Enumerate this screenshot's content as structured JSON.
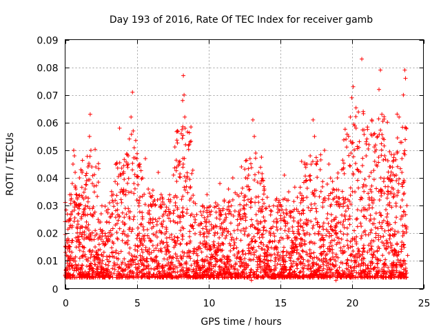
{
  "chart_data": {
    "type": "scatter",
    "title": "Day 193 of 2016, Rate Of TEC Index for receiver gamb",
    "xlabel": "GPS time / hours",
    "ylabel": "ROTI / TECUs",
    "xlim": [
      0,
      25
    ],
    "ylim": [
      0,
      0.09
    ],
    "xticks": [
      0,
      5,
      10,
      15,
      20,
      25
    ],
    "xtick_labels": [
      "0",
      "5",
      "10",
      "15",
      "20",
      "25"
    ],
    "yticks": [
      0,
      0.01,
      0.02,
      0.03,
      0.04,
      0.05,
      0.06,
      0.07,
      0.08,
      0.09
    ],
    "ytick_labels": [
      "0",
      "0.01",
      "0.02",
      "0.03",
      "0.04",
      "0.05",
      "0.06",
      "0.07",
      "0.08",
      "0.09"
    ],
    "grid": true,
    "marker": "plus",
    "color": "#ff0000",
    "series": [
      {
        "name": "ROTI",
        "points": [
          [
            0.1,
            0.012
          ],
          [
            0.2,
            0.018
          ],
          [
            0.3,
            0.025
          ],
          [
            0.4,
            0.032
          ],
          [
            0.5,
            0.038
          ],
          [
            0.55,
            0.045
          ],
          [
            0.6,
            0.05
          ],
          [
            0.65,
            0.048
          ],
          [
            0.7,
            0.042
          ],
          [
            0.75,
            0.036
          ],
          [
            0.8,
            0.03
          ],
          [
            0.9,
            0.027
          ],
          [
            1.0,
            0.04
          ],
          [
            1.1,
            0.043
          ],
          [
            1.2,
            0.033
          ],
          [
            1.3,
            0.028
          ],
          [
            1.4,
            0.036
          ],
          [
            1.5,
            0.039
          ],
          [
            1.6,
            0.044
          ],
          [
            1.7,
            0.055
          ],
          [
            1.75,
            0.063
          ],
          [
            1.8,
            0.05
          ],
          [
            1.9,
            0.038
          ],
          [
            2.0,
            0.027
          ],
          [
            2.1,
            0.021
          ],
          [
            2.3,
            0.018
          ],
          [
            2.6,
            0.02
          ],
          [
            2.9,
            0.024
          ],
          [
            3.1,
            0.031
          ],
          [
            3.3,
            0.027
          ],
          [
            3.5,
            0.023
          ],
          [
            3.8,
            0.058
          ],
          [
            3.9,
            0.041
          ],
          [
            4.0,
            0.035
          ],
          [
            4.2,
            0.029
          ],
          [
            4.4,
            0.045
          ],
          [
            4.6,
            0.062
          ],
          [
            4.7,
            0.071
          ],
          [
            4.75,
            0.057
          ],
          [
            4.8,
            0.038
          ],
          [
            5.0,
            0.032
          ],
          [
            5.2,
            0.044
          ],
          [
            5.4,
            0.04
          ],
          [
            5.6,
            0.047
          ],
          [
            5.8,
            0.036
          ],
          [
            6.0,
            0.03
          ],
          [
            6.3,
            0.025
          ],
          [
            6.5,
            0.042
          ],
          [
            6.7,
            0.034
          ],
          [
            7.0,
            0.028
          ],
          [
            7.3,
            0.027
          ],
          [
            7.6,
            0.033
          ],
          [
            7.8,
            0.044
          ],
          [
            8.0,
            0.046
          ],
          [
            8.1,
            0.056
          ],
          [
            8.2,
            0.068
          ],
          [
            8.25,
            0.077
          ],
          [
            8.3,
            0.07
          ],
          [
            8.35,
            0.062
          ],
          [
            8.4,
            0.052
          ],
          [
            8.5,
            0.04
          ],
          [
            8.7,
            0.032
          ],
          [
            9.0,
            0.026
          ],
          [
            9.3,
            0.023
          ],
          [
            9.6,
            0.03
          ],
          [
            9.9,
            0.034
          ],
          [
            10.2,
            0.028
          ],
          [
            10.5,
            0.031
          ],
          [
            10.8,
            0.038
          ],
          [
            11.1,
            0.032
          ],
          [
            11.4,
            0.036
          ],
          [
            11.7,
            0.04
          ],
          [
            12.0,
            0.034
          ],
          [
            12.3,
            0.044
          ],
          [
            12.6,
            0.04
          ],
          [
            12.9,
            0.047
          ],
          [
            13.1,
            0.061
          ],
          [
            13.2,
            0.055
          ],
          [
            13.3,
            0.049
          ],
          [
            13.5,
            0.042
          ],
          [
            13.7,
            0.039
          ],
          [
            13.9,
            0.036
          ],
          [
            14.1,
            0.033
          ],
          [
            14.4,
            0.028
          ],
          [
            14.7,
            0.032
          ],
          [
            15.0,
            0.03
          ],
          [
            15.3,
            0.041
          ],
          [
            15.6,
            0.035
          ],
          [
            15.9,
            0.028
          ],
          [
            16.2,
            0.033
          ],
          [
            16.5,
            0.046
          ],
          [
            16.8,
            0.039
          ],
          [
            17.1,
            0.048
          ],
          [
            17.3,
            0.061
          ],
          [
            17.4,
            0.055
          ],
          [
            17.6,
            0.046
          ],
          [
            17.8,
            0.043
          ],
          [
            18.1,
            0.05
          ],
          [
            18.4,
            0.045
          ],
          [
            18.7,
            0.036
          ],
          [
            19.0,
            0.04
          ],
          [
            19.3,
            0.043
          ],
          [
            19.6,
            0.054
          ],
          [
            19.9,
            0.062
          ],
          [
            20.0,
            0.069
          ],
          [
            20.1,
            0.073
          ],
          [
            20.3,
            0.058
          ],
          [
            20.5,
            0.051
          ],
          [
            20.7,
            0.083
          ],
          [
            20.8,
            0.064
          ],
          [
            21.0,
            0.048
          ],
          [
            21.2,
            0.052
          ],
          [
            21.4,
            0.061
          ],
          [
            21.6,
            0.046
          ],
          [
            21.8,
            0.055
          ],
          [
            21.9,
            0.072
          ],
          [
            22.0,
            0.079
          ],
          [
            22.1,
            0.063
          ],
          [
            22.3,
            0.048
          ],
          [
            22.5,
            0.04
          ],
          [
            22.7,
            0.044
          ],
          [
            22.9,
            0.036
          ],
          [
            23.1,
            0.041
          ],
          [
            23.3,
            0.062
          ],
          [
            23.5,
            0.047
          ],
          [
            23.6,
            0.07
          ],
          [
            23.7,
            0.079
          ],
          [
            23.75,
            0.076
          ],
          [
            23.8,
            0.058
          ],
          [
            23.85,
            0.03
          ],
          [
            0.3,
            0.008
          ],
          [
            0.6,
            0.01
          ],
          [
            1.2,
            0.006
          ],
          [
            1.8,
            0.009
          ],
          [
            2.5,
            0.007
          ],
          [
            3.2,
            0.005
          ],
          [
            3.6,
            0.011
          ],
          [
            4.5,
            0.006
          ],
          [
            5.1,
            0.009
          ],
          [
            5.9,
            0.004
          ],
          [
            6.6,
            0.008
          ],
          [
            7.2,
            0.005
          ],
          [
            7.9,
            0.01
          ],
          [
            8.6,
            0.007
          ],
          [
            9.4,
            0.004
          ],
          [
            10.1,
            0.009
          ],
          [
            10.9,
            0.005
          ],
          [
            11.6,
            0.008
          ],
          [
            12.4,
            0.006
          ],
          [
            13.0,
            0.003
          ],
          [
            13.8,
            0.007
          ],
          [
            14.6,
            0.005
          ],
          [
            15.2,
            0.004
          ],
          [
            15.8,
            0.009
          ],
          [
            16.4,
            0.006
          ],
          [
            17.0,
            0.01
          ],
          [
            17.7,
            0.004
          ],
          [
            18.3,
            0.007
          ],
          [
            18.9,
            0.003
          ],
          [
            19.5,
            0.006
          ],
          [
            20.2,
            0.008
          ],
          [
            20.9,
            0.005
          ],
          [
            21.5,
            0.007
          ],
          [
            22.2,
            0.004
          ],
          [
            22.8,
            0.009
          ],
          [
            23.4,
            0.005
          ],
          [
            0.05,
            0.015
          ],
          [
            23.9,
            0.012
          ],
          [
            5.5,
            0.018
          ],
          [
            9.8,
            0.016
          ]
        ]
      }
    ]
  }
}
